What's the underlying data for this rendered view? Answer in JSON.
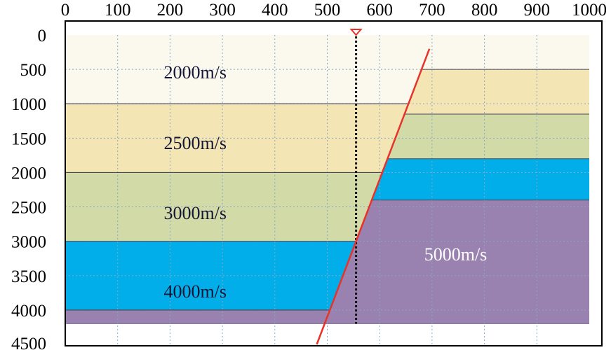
{
  "axes": {
    "x_ticks": [
      "0",
      "100",
      "200",
      "300",
      "400",
      "500",
      "600",
      "700",
      "800",
      "900",
      "1000"
    ],
    "y_ticks": [
      "0",
      "500",
      "1000",
      "1500",
      "2000",
      "2500",
      "3000",
      "3500",
      "4000",
      "4500"
    ],
    "x_range": [
      0,
      1000
    ],
    "y_range": [
      0,
      4500
    ],
    "grid": true
  },
  "layers": {
    "left_block": [
      {
        "velocity": "2000m/s",
        "top": 0,
        "bottom": 1000,
        "color": "#fbf9ee"
      },
      {
        "velocity": "2500m/s",
        "top": 1000,
        "bottom": 2000,
        "color": "#f3e6b4"
      },
      {
        "velocity": "3000m/s",
        "top": 2000,
        "bottom": 3000,
        "color": "#d2dba7"
      },
      {
        "velocity": "4000m/s",
        "top": 3000,
        "bottom": 4000,
        "color": "#02aee9"
      },
      {
        "velocity": "",
        "top": 4000,
        "bottom": 4200,
        "color": "#9982b0"
      }
    ],
    "right_block": [
      {
        "velocity": "",
        "top": 0,
        "bottom": 500,
        "color": "#fbf9ee"
      },
      {
        "velocity": "",
        "top": 500,
        "bottom": 1150,
        "color": "#f3e6b4"
      },
      {
        "velocity": "",
        "top": 1150,
        "bottom": 1800,
        "color": "#d2dba7"
      },
      {
        "velocity": "",
        "top": 1800,
        "bottom": 2400,
        "color": "#02aee9"
      },
      {
        "velocity": "5000m/s",
        "top": 2400,
        "bottom": 4200,
        "color": "#9982b0"
      }
    ]
  },
  "fault": {
    "color": "#e8332a",
    "top_point": [
      695,
      200
    ],
    "bottom_point": [
      480,
      4500
    ],
    "left_block_boundaries": [
      {
        "x": 555,
        "depth": 2000
      },
      {
        "x": 540,
        "depth": 3000
      },
      {
        "x": 520,
        "depth": 4000
      }
    ],
    "right_block_boundaries": [
      {
        "x": 650,
        "depth": 1150
      },
      {
        "x": 610,
        "depth": 1800
      },
      {
        "x": 590,
        "depth": 2400
      }
    ]
  },
  "well": {
    "x": 555,
    "top_depth": 0,
    "bottom_depth": 4200,
    "marker_color": "#e8332a",
    "line_color": "#111111"
  },
  "colors": {
    "frame": "#000000",
    "grid": "#8aa6c4",
    "dark_label": "#151535",
    "light_label": "#ffffff"
  }
}
